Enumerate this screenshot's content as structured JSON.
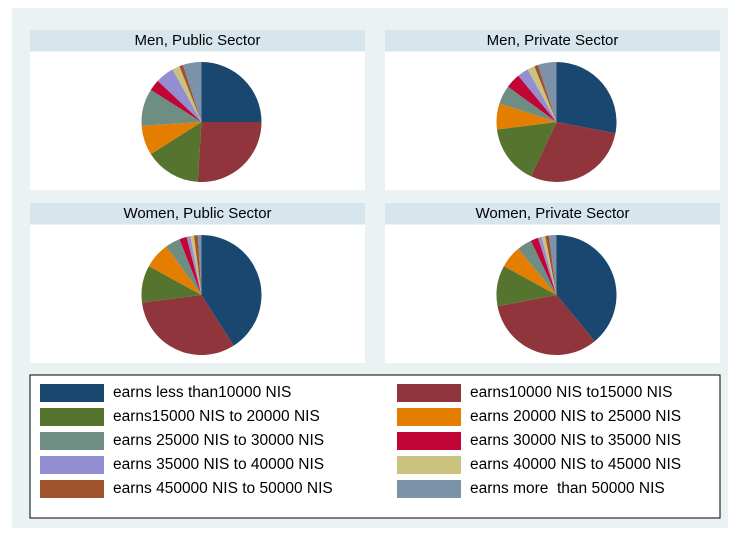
{
  "chart_data": [
    {
      "type": "pie",
      "title": "Men, Public Sector",
      "values": [
        25,
        26,
        15,
        8,
        10,
        3,
        5,
        2,
        1,
        5
      ]
    },
    {
      "type": "pie",
      "title": "Men, Private Sector",
      "values": [
        28,
        29,
        16,
        7,
        5,
        4,
        3,
        2,
        1,
        5
      ]
    },
    {
      "type": "pie",
      "title": "Women, Public Sector",
      "values": [
        41,
        32,
        10,
        7,
        4,
        2,
        1,
        1,
        1,
        1
      ]
    },
    {
      "type": "pie",
      "title": "Women, Private Sector",
      "values": [
        39,
        33,
        11,
        6,
        4,
        2,
        1,
        1,
        1,
        2
      ]
    }
  ],
  "legend": {
    "labels": [
      "earns less than10000 NIS",
      "earns10000 NIS to15000 NIS",
      "earns15000 NIS to 20000 NIS",
      "earns 20000 NIS to 25000 NIS",
      "earns 25000 NIS to 30000 NIS",
      "earns 30000 NIS to 35000 NIS",
      "earns 35000 NIS to 40000 NIS",
      "earns 40000 NIS to 45000 NIS",
      "earns 450000 NIS to 50000 NIS",
      "earns more  than 50000 NIS"
    ],
    "colors": [
      "#1a476f",
      "#90353b",
      "#55752f",
      "#e37e00",
      "#6e8e84",
      "#c10534",
      "#938dd2",
      "#cac27e",
      "#a0522d",
      "#7b92a8"
    ]
  }
}
